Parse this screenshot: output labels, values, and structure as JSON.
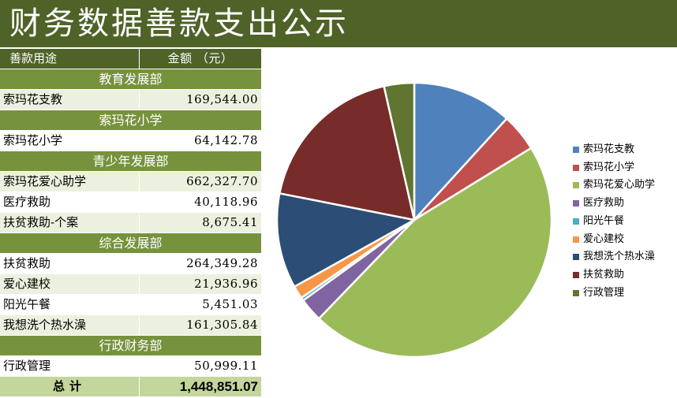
{
  "title": "财务数据善款支出公示",
  "table": {
    "header": {
      "col1": "善款用途",
      "col2": "金额 （元）"
    },
    "sections": [
      {
        "name": "教育发展部",
        "items": [
          {
            "label": "索玛花支教",
            "amount": "169,544.00"
          }
        ]
      },
      {
        "name": "索玛花小学",
        "items": [
          {
            "label": "索玛花小学",
            "amount": "64,142.78"
          }
        ]
      },
      {
        "name": "青少年发展部",
        "items": [
          {
            "label": "索玛花爱心助学",
            "amount": "662,327.70"
          },
          {
            "label": "医疗救助",
            "amount": "40,118.96"
          },
          {
            "label": "扶贫救助-个案",
            "amount": "8,675.41"
          }
        ]
      },
      {
        "name": "综合发展部",
        "items": [
          {
            "label": "扶贫救助",
            "amount": "264,349.28"
          },
          {
            "label": "爱心建校",
            "amount": "21,936.96"
          },
          {
            "label": "阳光午餐",
            "amount": "5,451.03"
          },
          {
            "label": "我想洗个热水澡",
            "amount": "161,305.84"
          }
        ]
      },
      {
        "name": "行政财务部",
        "items": [
          {
            "label": "行政管理",
            "amount": "50,999.11"
          }
        ]
      }
    ],
    "total": {
      "label": "总计",
      "amount": "1,448,851.07"
    }
  },
  "chart_data": {
    "type": "pie",
    "start_angle_deg": 0,
    "direction": "clockwise",
    "legend_position": "right",
    "slices": [
      {
        "name": "索玛花支教",
        "value": 169544.0,
        "color": "#4f81bd"
      },
      {
        "name": "索玛花小学",
        "value": 64142.78,
        "color": "#c0504d"
      },
      {
        "name": "索玛花爱心助学",
        "value": 662327.7,
        "color": "#9bbb59"
      },
      {
        "name": "医疗救助",
        "value": 40118.96,
        "color": "#8064a2"
      },
      {
        "name": "阳光午餐",
        "value": 5451.03,
        "color": "#4bacc6"
      },
      {
        "name": "爱心建校",
        "value": 21936.96,
        "color": "#f79646"
      },
      {
        "name": "我想洗个热水澡",
        "value": 161305.84,
        "color": "#2c4d75"
      },
      {
        "name": "扶贫救助",
        "value": 264349.28,
        "color": "#772c2a"
      },
      {
        "name": "行政管理",
        "value": 50999.11,
        "color": "#5f7530"
      }
    ]
  }
}
